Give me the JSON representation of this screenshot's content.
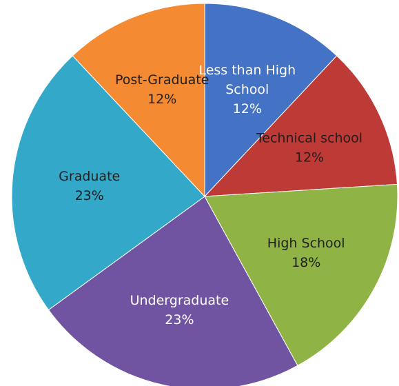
{
  "chart_data": {
    "type": "pie",
    "slices": [
      {
        "label": "Less than High School",
        "label_lines": [
          "Less than High",
          "School"
        ],
        "value": 12,
        "display": "12%",
        "color": "#4472C4",
        "label_color": "#ffffff"
      },
      {
        "label": "Technical school",
        "label_lines": [
          "Technical school"
        ],
        "value": 12,
        "display": "12%",
        "color": "#BE3A36",
        "label_color": "#1f1f1f"
      },
      {
        "label": "High School",
        "label_lines": [
          "High School"
        ],
        "value": 18,
        "display": "18%",
        "color": "#8FB344",
        "label_color": "#1f1f1f"
      },
      {
        "label": "Undergraduate",
        "label_lines": [
          "Undergraduate"
        ],
        "value": 23,
        "display": "23%",
        "color": "#7054A1",
        "label_color": "#ffffff"
      },
      {
        "label": "Graduate",
        "label_lines": [
          "Graduate"
        ],
        "value": 23,
        "display": "23%",
        "color": "#33A8C8",
        "label_color": "#1f1f1f"
      },
      {
        "label": "Post-Graduate",
        "label_lines": [
          "Post-Graduate"
        ],
        "value": 12,
        "display": "12%",
        "color": "#F48A31",
        "label_color": "#1f1f1f"
      }
    ],
    "start_angle_deg": 0,
    "direction": "clockwise",
    "legend": "none",
    "labels": "inside"
  }
}
